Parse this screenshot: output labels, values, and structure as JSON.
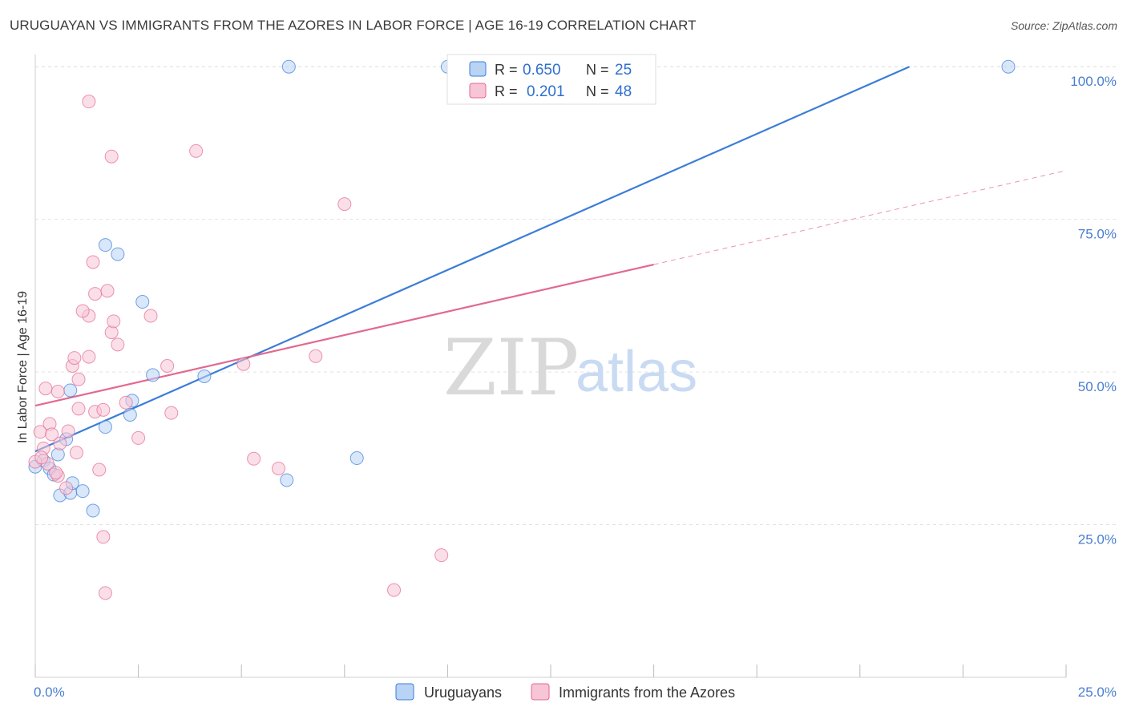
{
  "header": {
    "title": "URUGUAYAN VS IMMIGRANTS FROM THE AZORES IN LABOR FORCE | AGE 16-19 CORRELATION CHART",
    "source": "Source: ZipAtlas.com"
  },
  "watermark": {
    "zip": "ZIP",
    "atlas": "atlas"
  },
  "colors": {
    "blue": "#3b7dd8",
    "blue_fill": "#b9d3f5",
    "pink": "#e2698f",
    "pink_fill": "#f7c5d5",
    "grid": "#e2e2e2",
    "tick_text": "#4a7fd0"
  },
  "chart_data": {
    "type": "scatter",
    "title": "URUGUAYAN VS IMMIGRANTS FROM THE AZORES IN LABOR FORCE | AGE 16-19 CORRELATION CHART",
    "xlabel": "",
    "ylabel": "In Labor Force | Age 16-19",
    "xlim": [
      0,
      25
    ],
    "ylim": [
      0,
      102
    ],
    "x_tick_labels": [
      {
        "value": 0,
        "label": "0.0%"
      },
      {
        "value": 25,
        "label": "25.0%"
      }
    ],
    "y_tick_labels": [
      {
        "value": 25,
        "label": "25.0%"
      },
      {
        "value": 50,
        "label": "50.0%"
      },
      {
        "value": 75,
        "label": "75.0%"
      },
      {
        "value": 100,
        "label": "100.0%"
      }
    ],
    "legend": [
      {
        "name": "Uruguayans",
        "r_label": "R =",
        "r_value": "0.650",
        "n_label": "N =",
        "n_value": "25"
      },
      {
        "name": "Immigrants from the Azores",
        "r_label": "R =",
        "r_value": "0.201",
        "n_label": "N =",
        "n_value": "48"
      }
    ],
    "series": [
      {
        "name": "Uruguayans",
        "color": "blue",
        "points": [
          [
            0.0,
            34.5
          ],
          [
            0.2,
            35.5
          ],
          [
            0.35,
            34.2
          ],
          [
            0.45,
            33.2
          ],
          [
            0.6,
            29.8
          ],
          [
            0.85,
            30.2
          ],
          [
            0.9,
            31.8
          ],
          [
            1.15,
            30.5
          ],
          [
            1.4,
            27.3
          ],
          [
            0.75,
            39.0
          ],
          [
            0.55,
            36.5
          ],
          [
            1.7,
            41.0
          ],
          [
            2.3,
            43.0
          ],
          [
            2.35,
            45.3
          ],
          [
            1.7,
            70.8
          ],
          [
            2.6,
            61.5
          ],
          [
            2.85,
            49.5
          ],
          [
            4.1,
            49.3
          ],
          [
            0.85,
            47.0
          ],
          [
            2.0,
            69.3
          ],
          [
            6.1,
            32.3
          ],
          [
            7.8,
            35.9
          ],
          [
            6.15,
            100.0
          ],
          [
            10.0,
            100.0
          ],
          [
            23.6,
            100.0
          ]
        ],
        "trend": {
          "x0": 0.0,
          "y0": 37.0,
          "x1": 21.2,
          "y1": 100.0
        }
      },
      {
        "name": "Immigrants from the Azores",
        "color": "pink",
        "points": [
          [
            0.0,
            35.3
          ],
          [
            0.12,
            40.2
          ],
          [
            0.2,
            37.5
          ],
          [
            0.35,
            41.5
          ],
          [
            0.4,
            39.8
          ],
          [
            0.55,
            33.0
          ],
          [
            0.6,
            38.3
          ],
          [
            0.75,
            31.0
          ],
          [
            0.8,
            40.3
          ],
          [
            0.9,
            51.0
          ],
          [
            0.95,
            52.3
          ],
          [
            1.05,
            44.0
          ],
          [
            1.05,
            48.8
          ],
          [
            1.3,
            52.5
          ],
          [
            1.45,
            43.5
          ],
          [
            1.55,
            34.0
          ],
          [
            1.3,
            59.2
          ],
          [
            1.15,
            60.0
          ],
          [
            1.45,
            62.8
          ],
          [
            1.4,
            68.0
          ],
          [
            1.65,
            23.0
          ],
          [
            1.7,
            13.8
          ],
          [
            1.75,
            63.3
          ],
          [
            1.85,
            56.5
          ],
          [
            1.9,
            58.3
          ],
          [
            2.0,
            54.5
          ],
          [
            2.2,
            45.0
          ],
          [
            2.5,
            39.2
          ],
          [
            2.8,
            59.2
          ],
          [
            3.2,
            51.0
          ],
          [
            3.3,
            43.3
          ],
          [
            0.25,
            47.3
          ],
          [
            0.55,
            46.8
          ],
          [
            1.65,
            43.8
          ],
          [
            5.05,
            51.3
          ],
          [
            5.3,
            35.8
          ],
          [
            5.9,
            34.2
          ],
          [
            6.8,
            52.6
          ],
          [
            7.5,
            77.5
          ],
          [
            8.7,
            14.3
          ],
          [
            9.85,
            20.0
          ],
          [
            1.3,
            94.3
          ],
          [
            1.85,
            85.3
          ],
          [
            3.9,
            86.2
          ],
          [
            0.3,
            35.0
          ],
          [
            0.5,
            33.5
          ],
          [
            0.15,
            36.0
          ],
          [
            1.0,
            36.8
          ]
        ],
        "trend": {
          "x0": 0.0,
          "y0": 44.5,
          "x1": 15.0,
          "y1": 67.6
        },
        "trend_ext": {
          "x0": 15.0,
          "y0": 67.6,
          "x1": 25.0,
          "y1": 83.0
        }
      }
    ]
  }
}
